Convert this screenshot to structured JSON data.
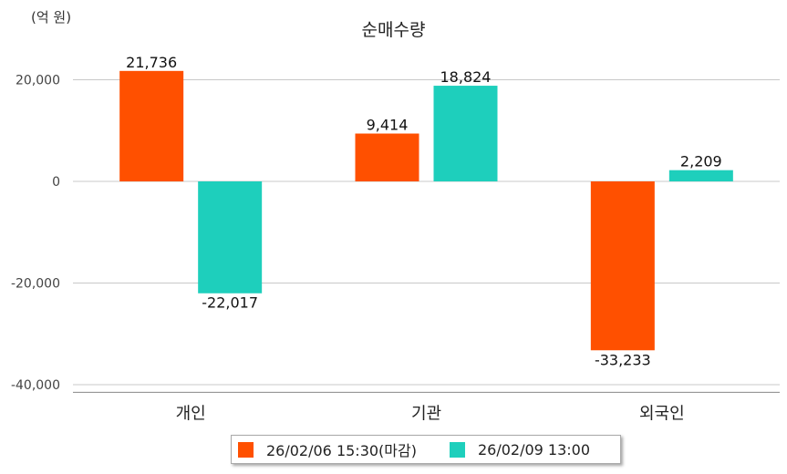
{
  "chart_data": {
    "type": "bar",
    "title": "순매수량",
    "unit_label": "(억 원)",
    "categories": [
      "개인",
      "기관",
      "외국인"
    ],
    "series": [
      {
        "name": "26/02/06 15:30(마감)",
        "color": "#ff5000",
        "values": [
          21736,
          9414,
          -33233
        ]
      },
      {
        "name": "26/02/09 13:00",
        "color": "#1ecfbc",
        "values": [
          -22017,
          18824,
          2209
        ]
      }
    ],
    "data_labels": [
      [
        "21,736",
        "9,414",
        "-33,233"
      ],
      [
        "-22,017",
        "18,824",
        "2,209"
      ]
    ],
    "yticks": [
      20000,
      0,
      -20000,
      -40000
    ],
    "ytick_labels": [
      "20,000",
      "0",
      "-20,000",
      "-40,000"
    ],
    "ylim": [
      -41500,
      27500
    ],
    "grid": true,
    "legend_position": "bottom-center"
  }
}
